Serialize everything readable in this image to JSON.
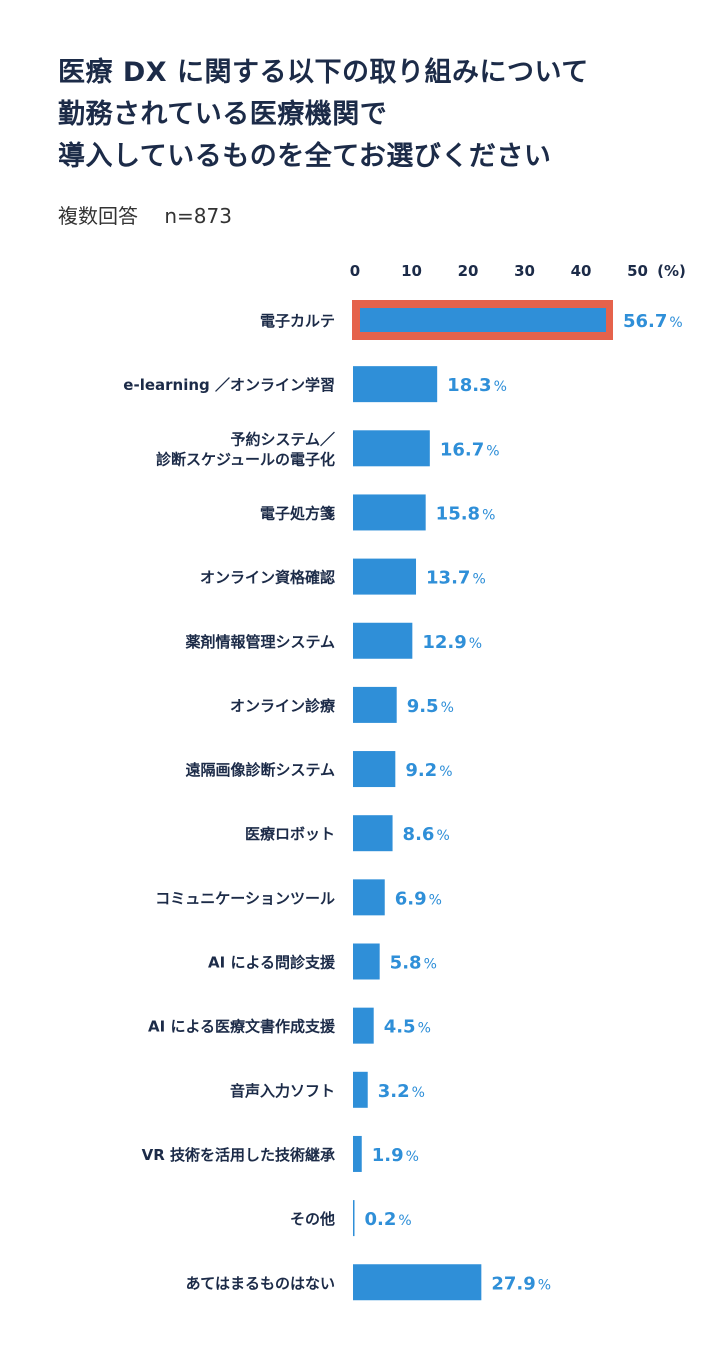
{
  "title_lines": [
    "医療 DX に関する以下の取り組みについて",
    "勤務されている医療機関で",
    "導入しているものを全てお選びください"
  ],
  "subtitle": "複数回答　 n=873",
  "colors": {
    "bar": "#2f8fd8",
    "highlight_border": "#e5624b",
    "highlight_text": "#f0602a",
    "text": "#1c2b48"
  },
  "chart_data": {
    "type": "bar",
    "orientation": "horizontal",
    "x_ticks": [
      "0",
      "10",
      "20",
      "30",
      "40",
      "50"
    ],
    "x_unit_label": "(%)",
    "categories": [
      [
        "電子カルテ"
      ],
      [
        "e-learning ／オンライン学習"
      ],
      [
        "予約システム／",
        "診断スケジュールの電子化"
      ],
      [
        "電子処方箋"
      ],
      [
        "オンライン資格確認"
      ],
      [
        "薬剤情報管理システム"
      ],
      [
        "オンライン診療"
      ],
      [
        "遠隔画像診断システム"
      ],
      [
        "医療ロボット"
      ],
      [
        "コミュニケーションツール"
      ],
      [
        "AI による問診支援"
      ],
      [
        "AI による医療文書作成支援"
      ],
      [
        "音声入力ソフト"
      ],
      [
        "VR 技術を活用した技術継承"
      ],
      [
        "その他"
      ],
      [
        "あてはまるものはない"
      ]
    ],
    "values": [
      56.7,
      18.3,
      16.7,
      15.8,
      13.7,
      12.9,
      9.5,
      9.2,
      8.6,
      6.9,
      5.8,
      4.5,
      3.2,
      1.9,
      0.2,
      27.9
    ],
    "value_labels": [
      "56.7",
      "18.3",
      "16.7",
      "15.8",
      "13.7",
      "12.9",
      "9.5",
      "9.2",
      "8.6",
      "6.9",
      "5.8",
      "4.5",
      "3.2",
      "1.9",
      "0.2",
      "27.9"
    ],
    "value_suffix": "%",
    "highlighted": [
      0
    ],
    "grid": false
  }
}
